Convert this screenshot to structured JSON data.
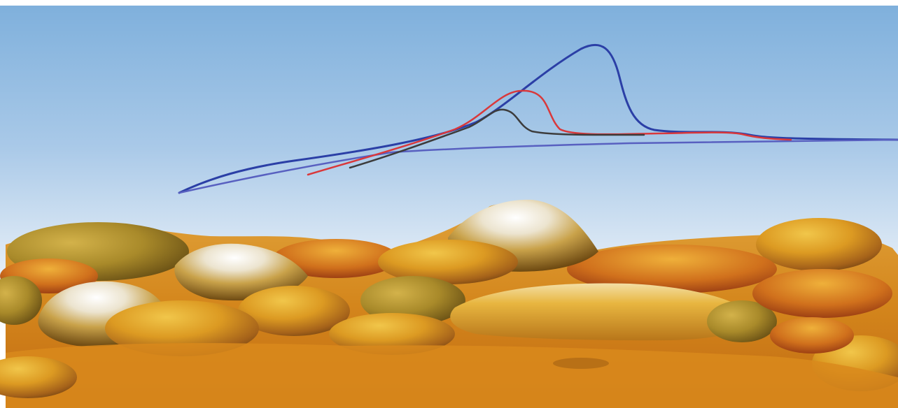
{
  "colors": {
    "sky_top": "#7fb0dc",
    "sky_mid": "#cfe1f2",
    "sky_bottom": "#ffffff",
    "curve_blue": "#2b3fa6",
    "curve_red": "#d9383b",
    "curve_black": "#3c3c3c",
    "terrain_highlight": "#f4f1ea",
    "terrain_light": "#e8b72f",
    "terrain_mid": "#d98a1c",
    "terrain_dark": "#7a4a0e",
    "terrain_shadow": "#5a4a16"
  }
}
